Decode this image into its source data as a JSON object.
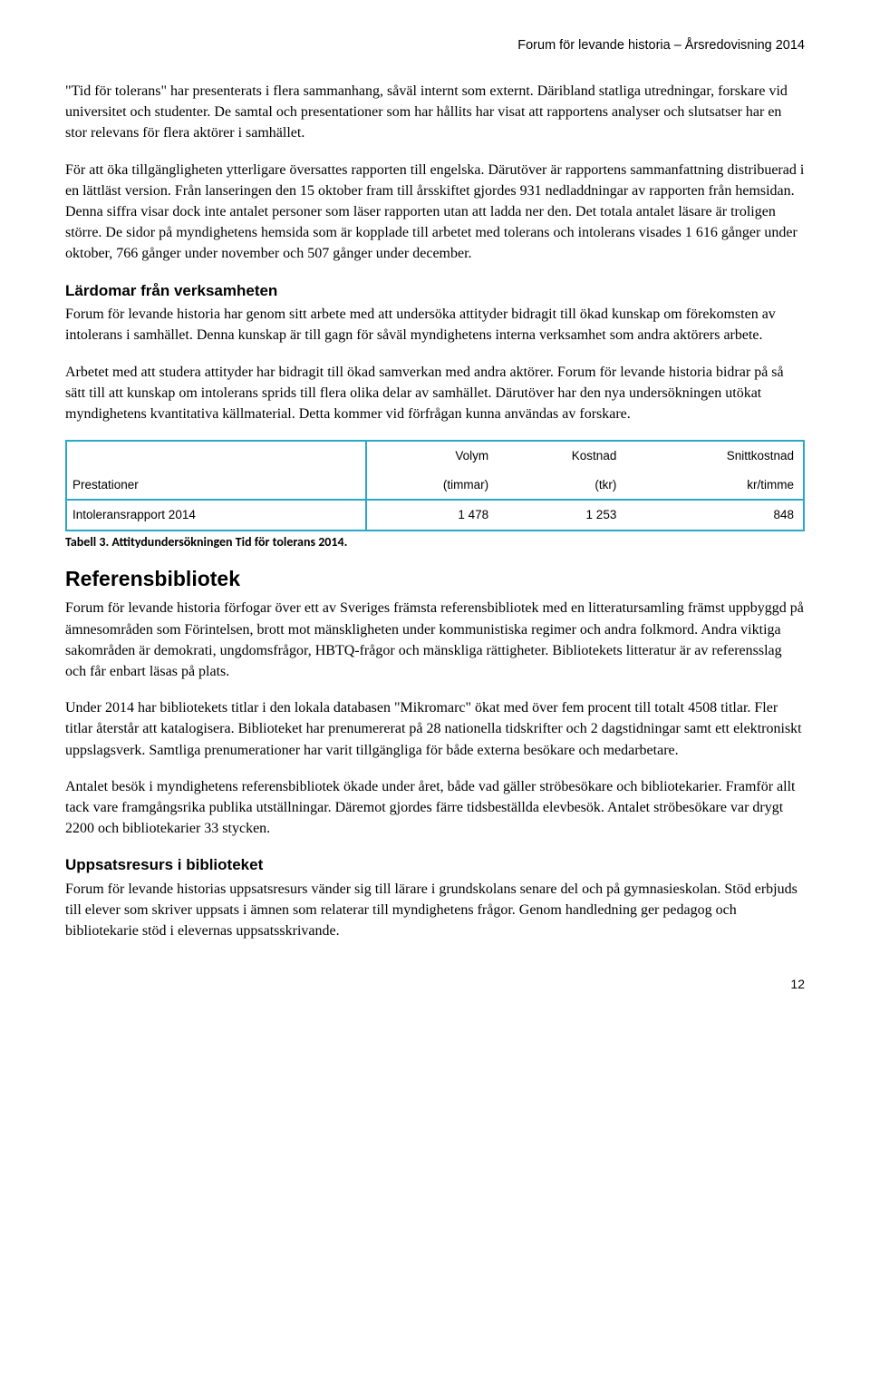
{
  "header": "Forum för levande historia – Årsredovisning 2014",
  "p1": "\"Tid för tolerans\" har presenterats i flera sammanhang, såväl internt som externt. Däribland statliga utredningar, forskare vid universitet och studenter. De samtal och presentationer som har hållits har visat att rapportens analyser och slutsatser har en stor relevans för flera aktörer i samhället.",
  "p2": "För att öka tillgängligheten ytterligare översattes rapporten till engelska. Därutöver är rapportens sammanfattning distribuerad i en lättläst version. Från lanseringen den 15 oktober fram till årsskiftet gjordes 931 nedladdningar av rapporten från hemsidan. Denna siffra visar dock inte antalet personer som läser rapporten utan att ladda ner den. Det totala antalet läsare är troligen större. De sidor på myndighetens hemsida som är kopplade till arbetet med tolerans och intolerans visades 1 616 gånger under oktober, 766 gånger under november och 507 gånger under december.",
  "h_lardomar": "Lärdomar från verksamheten",
  "p3": "Forum för levande historia har genom sitt arbete med att undersöka attityder bidragit till ökad kunskap om förekomsten av intolerans i samhället. Denna kunskap är till gagn för såväl myndighetens interna verksamhet som andra aktörers arbete.",
  "p4": "Arbetet med att studera attityder har bidragit till ökad samverkan med andra aktörer. Forum för levande historia bidrar på så sätt till att kunskap om intolerans sprids till flera olika delar av samhället. Därutöver har den nya undersökningen utökat myndighetens kvantitativa källmaterial. Detta kommer vid förfrågan kunna användas av forskare.",
  "table": {
    "border_color": "#2aa8c9",
    "head_row1": [
      "",
      "Volym",
      "Kostnad",
      "Snittkostnad"
    ],
    "head_row2": [
      "Prestationer",
      "(timmar)",
      "(tkr)",
      "kr/timme"
    ],
    "body_row": [
      "Intoleransrapport 2014",
      "1 478",
      "1 253",
      "848"
    ]
  },
  "caption": "Tabell 3. Attitydundersökningen Tid för tolerans 2014.",
  "h_ref": "Referensbibliotek",
  "p5": "Forum för levande historia förfogar över ett av Sveriges främsta referensbibliotek med en litteratursamling främst uppbyggd på ämnesområden som Förintelsen, brott mot mänskligheten under kommunistiska regimer och andra folkmord. Andra viktiga sakområden är demokrati, ungdomsfrågor, HBTQ-frågor och mänskliga rättigheter. Bibliotekets litteratur är av referensslag och får enbart läsas på plats.",
  "p6": "Under 2014 har bibliotekets titlar i den lokala databasen \"Mikromarc\" ökat med över fem procent till totalt 4508 titlar. Fler titlar återstår att katalogisera. Biblioteket har prenumererat på 28 nationella tidskrifter och 2 dagstidningar samt ett elektroniskt uppslagsverk. Samtliga prenumerationer har varit tillgängliga för både externa besökare och medarbetare.",
  "p7": "Antalet besök i myndighetens referensbibliotek ökade under året, både vad gäller ströbesökare och bibliotekarier. Framför allt tack vare framgångsrika publika utställningar. Däremot gjordes färre tidsbeställda elevbesök. Antalet ströbesökare var drygt 2200 och bibliotekarier 33 stycken.",
  "h_uppsats": "Uppsatsresurs i biblioteket",
  "p8": "Forum för levande historias uppsatsresurs vänder sig till lärare i grundskolans senare del och på gymnasieskolan. Stöd erbjuds till elever som skriver uppsats i ämnen som relaterar till myndighetens frågor. Genom handledning ger pedagog och bibliotekarie stöd i elevernas uppsatsskrivande.",
  "page_number": "12"
}
